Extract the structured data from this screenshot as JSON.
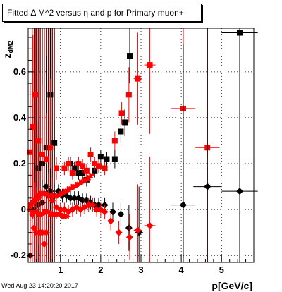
{
  "title": "Fitted Δ M^2 versus η and p for Primary muon+",
  "footer_timestamp": "Wed Aug 23 14:20:20 2017",
  "chart_data": {
    "type": "scatter",
    "title": "Fitted Δ M^2 versus η and p for Primary muon+",
    "xlabel": "p[GeV/c]",
    "ylabel": "z_dM2",
    "xlim": [
      0.2,
      5.8
    ],
    "ylim": [
      -0.23,
      0.79
    ],
    "grid": true,
    "xticks": [
      1,
      2,
      3,
      4,
      5
    ],
    "yticks": [
      -0.2,
      0,
      0.2,
      0.4,
      0.6
    ],
    "colors": {
      "black": "#000000",
      "red": "#ff0000",
      "darkred": "#800000"
    },
    "series": [
      {
        "color": "black",
        "marker": "square",
        "points": [
          {
            "x": 0.45,
            "y": 0.18,
            "ex": 0.03,
            "ey": 0.2
          },
          {
            "x": 0.55,
            "y": 0.2,
            "ex": 0.03,
            "ey": 0.15
          },
          {
            "x": 0.65,
            "y": 0.27,
            "ex": 0.04,
            "ey": 0.4
          },
          {
            "x": 0.75,
            "y": 0.5,
            "ex": 0.04,
            "ey": 0.3
          },
          {
            "x": 0.85,
            "y": 0.29,
            "ex": 0.04,
            "ey": 0.1
          },
          {
            "x": 1.25,
            "y": 0.2,
            "ex": 0.05,
            "ey": 0.03
          },
          {
            "x": 1.35,
            "y": 0.18,
            "ex": 0.05,
            "ey": 0.03
          },
          {
            "x": 1.45,
            "y": 0.16,
            "ex": 0.05,
            "ey": 0.03
          },
          {
            "x": 1.55,
            "y": 0.16,
            "ex": 0.05,
            "ey": 0.03
          },
          {
            "x": 1.65,
            "y": 0.13,
            "ex": 0.05,
            "ey": 0.03
          },
          {
            "x": 1.85,
            "y": 0.17,
            "ex": 0.05,
            "ey": 0.03
          },
          {
            "x": 2.0,
            "y": 0.23,
            "ex": 0.05,
            "ey": 0.03
          },
          {
            "x": 2.15,
            "y": 0.22,
            "ex": 0.05,
            "ey": 0.03
          },
          {
            "x": 2.35,
            "y": 0.22,
            "ex": 0.05,
            "ey": 0.04
          },
          {
            "x": 2.5,
            "y": 0.34,
            "ex": 0.05,
            "ey": 0.05
          },
          {
            "x": 2.6,
            "y": 0.38,
            "ex": 0.05,
            "ey": 0.06
          },
          {
            "x": 2.72,
            "y": 0.67,
            "ex": 0.06,
            "ey": 0.12
          },
          {
            "x": 5.45,
            "y": 0.77,
            "ex": 0.45,
            "ey": 0.9
          }
        ]
      },
      {
        "color": "red",
        "marker": "square",
        "points": [
          {
            "x": 0.25,
            "y": 0.25,
            "ex": 0.03,
            "ey": 0.3
          },
          {
            "x": 0.32,
            "y": 0.36,
            "ex": 0.03,
            "ey": 0.4
          },
          {
            "x": 0.38,
            "y": 0.5,
            "ex": 0.03,
            "ey": 0.5
          },
          {
            "x": 0.45,
            "y": 0.3,
            "ex": 0.03,
            "ey": 0.3
          },
          {
            "x": 0.55,
            "y": 0.24,
            "ex": 0.03,
            "ey": 0.3
          },
          {
            "x": 0.65,
            "y": 0.22,
            "ex": 0.04,
            "ey": 0.2
          },
          {
            "x": 0.75,
            "y": 0.27,
            "ex": 0.04,
            "ey": 0.3
          },
          {
            "x": 0.9,
            "y": 0.18,
            "ex": 0.04,
            "ey": 0.05
          },
          {
            "x": 1.1,
            "y": 0.18,
            "ex": 0.05,
            "ey": 0.03
          },
          {
            "x": 1.2,
            "y": 0.2,
            "ex": 0.05,
            "ey": 0.03
          },
          {
            "x": 1.3,
            "y": 0.16,
            "ex": 0.05,
            "ey": 0.03
          },
          {
            "x": 1.45,
            "y": 0.2,
            "ex": 0.05,
            "ey": 0.03
          },
          {
            "x": 1.55,
            "y": 0.19,
            "ex": 0.05,
            "ey": 0.03
          },
          {
            "x": 1.65,
            "y": 0.17,
            "ex": 0.05,
            "ey": 0.03
          },
          {
            "x": 1.75,
            "y": 0.24,
            "ex": 0.05,
            "ey": 0.03
          },
          {
            "x": 1.85,
            "y": 0.2,
            "ex": 0.05,
            "ey": 0.03
          },
          {
            "x": 1.95,
            "y": 0.19,
            "ex": 0.05,
            "ey": 0.03
          },
          {
            "x": 2.1,
            "y": 0.18,
            "ex": 0.05,
            "ey": 0.03
          },
          {
            "x": 2.35,
            "y": 0.3,
            "ex": 0.05,
            "ey": 0.04
          },
          {
            "x": 2.52,
            "y": 0.42,
            "ex": 0.05,
            "ey": 0.05
          },
          {
            "x": 2.7,
            "y": 0.5,
            "ex": 0.06,
            "ey": 0.12
          },
          {
            "x": 2.92,
            "y": 0.57,
            "ex": 0.1,
            "ey": 0.2
          },
          {
            "x": 3.22,
            "y": 0.63,
            "ex": 0.14,
            "ey": 0.3
          },
          {
            "x": 4.05,
            "y": 0.44,
            "ex": 0.3,
            "ey": 0.7
          },
          {
            "x": 4.65,
            "y": 0.27,
            "ex": 0.3,
            "ey": 0.7
          }
        ]
      },
      {
        "color": "black",
        "marker": "diamond",
        "points": [
          {
            "x": 0.25,
            "y": -0.2,
            "ex": 0.03,
            "ey": 0.3
          },
          {
            "x": 0.35,
            "y": 0.0,
            "ex": 0.03,
            "ey": 0.2
          },
          {
            "x": 0.45,
            "y": 0.02,
            "ex": 0.03,
            "ey": 0.1
          },
          {
            "x": 0.55,
            "y": 0.03,
            "ex": 0.03,
            "ey": 0.1
          },
          {
            "x": 0.65,
            "y": 0.1,
            "ex": 0.04,
            "ey": 0.1
          },
          {
            "x": 0.75,
            "y": 0.08,
            "ex": 0.04,
            "ey": 0.1
          },
          {
            "x": 0.85,
            "y": 0.06,
            "ex": 0.04,
            "ey": 0.05
          },
          {
            "x": 0.95,
            "y": 0.08,
            "ex": 0.04,
            "ey": 0.03
          },
          {
            "x": 1.05,
            "y": 0.06,
            "ex": 0.04,
            "ey": 0.03
          },
          {
            "x": 1.15,
            "y": 0.06,
            "ex": 0.04,
            "ey": 0.03
          },
          {
            "x": 1.25,
            "y": 0.05,
            "ex": 0.05,
            "ey": 0.03
          },
          {
            "x": 1.35,
            "y": 0.05,
            "ex": 0.05,
            "ey": 0.03
          },
          {
            "x": 1.45,
            "y": 0.05,
            "ex": 0.05,
            "ey": 0.03
          },
          {
            "x": 1.55,
            "y": 0.04,
            "ex": 0.05,
            "ey": 0.03
          },
          {
            "x": 1.65,
            "y": 0.04,
            "ex": 0.05,
            "ey": 0.03
          },
          {
            "x": 1.75,
            "y": 0.03,
            "ex": 0.05,
            "ey": 0.03
          },
          {
            "x": 1.85,
            "y": 0.02,
            "ex": 0.05,
            "ey": 0.03
          },
          {
            "x": 1.95,
            "y": 0.02,
            "ex": 0.05,
            "ey": 0.03
          },
          {
            "x": 2.1,
            "y": 0.02,
            "ex": 0.05,
            "ey": 0.03
          },
          {
            "x": 2.3,
            "y": -0.01,
            "ex": 0.05,
            "ey": 0.04
          },
          {
            "x": 2.5,
            "y": -0.02,
            "ex": 0.05,
            "ey": 0.05
          },
          {
            "x": 2.7,
            "y": -0.08,
            "ex": 0.06,
            "ey": 0.1
          },
          {
            "x": 2.95,
            "y": -0.1,
            "ex": 0.1,
            "ey": 0.2
          },
          {
            "x": 4.05,
            "y": 0.02,
            "ex": 0.3,
            "ey": 0.7
          },
          {
            "x": 4.65,
            "y": 0.1,
            "ex": 0.35,
            "ey": 0.7
          },
          {
            "x": 5.45,
            "y": 0.08,
            "ex": 0.45,
            "ey": 0.9
          }
        ]
      },
      {
        "color": "red",
        "marker": "diamond",
        "points": [
          {
            "x": 0.25,
            "y": 0.0,
            "ex": 0.03,
            "ey": 0.25
          },
          {
            "x": 0.3,
            "y": -0.02,
            "ex": 0.03,
            "ey": 0.2
          },
          {
            "x": 0.35,
            "y": -0.08,
            "ex": 0.03,
            "ey": 0.2
          },
          {
            "x": 0.4,
            "y": -0.1,
            "ex": 0.03,
            "ey": 0.2
          },
          {
            "x": 0.45,
            "y": 0.05,
            "ex": 0.03,
            "ey": 0.2
          },
          {
            "x": 0.5,
            "y": -0.1,
            "ex": 0.03,
            "ey": 0.2
          },
          {
            "x": 0.55,
            "y": -0.1,
            "ex": 0.03,
            "ey": 0.2
          },
          {
            "x": 0.6,
            "y": -0.15,
            "ex": 0.03,
            "ey": 0.2
          },
          {
            "x": 0.65,
            "y": -0.1,
            "ex": 0.04,
            "ey": 0.15
          },
          {
            "x": 0.7,
            "y": 0.06,
            "ex": 0.04,
            "ey": 0.1
          },
          {
            "x": 0.8,
            "y": 0.04,
            "ex": 0.04,
            "ey": 0.1
          },
          {
            "x": 0.9,
            "y": 0.01,
            "ex": 0.04,
            "ey": 0.05
          },
          {
            "x": 1.0,
            "y": 0.0,
            "ex": 0.04,
            "ey": 0.03
          },
          {
            "x": 1.1,
            "y": 0.0,
            "ex": 0.04,
            "ey": 0.03
          },
          {
            "x": 1.2,
            "y": -0.01,
            "ex": 0.04,
            "ey": 0.03
          },
          {
            "x": 1.3,
            "y": 0.0,
            "ex": 0.05,
            "ey": 0.03
          },
          {
            "x": 1.4,
            "y": 0.01,
            "ex": 0.05,
            "ey": 0.03
          },
          {
            "x": 1.5,
            "y": 0.0,
            "ex": 0.05,
            "ey": 0.03
          },
          {
            "x": 1.6,
            "y": 0.01,
            "ex": 0.05,
            "ey": 0.03
          },
          {
            "x": 1.7,
            "y": 0.02,
            "ex": 0.05,
            "ey": 0.03
          },
          {
            "x": 1.8,
            "y": 0.02,
            "ex": 0.05,
            "ey": 0.03
          },
          {
            "x": 1.9,
            "y": 0.0,
            "ex": 0.05,
            "ey": 0.03
          },
          {
            "x": 2.0,
            "y": 0.0,
            "ex": 0.05,
            "ey": 0.03
          },
          {
            "x": 2.1,
            "y": -0.01,
            "ex": 0.05,
            "ey": 0.03
          },
          {
            "x": 2.25,
            "y": -0.05,
            "ex": 0.05,
            "ey": 0.04
          },
          {
            "x": 2.45,
            "y": -0.1,
            "ex": 0.05,
            "ey": 0.05
          },
          {
            "x": 2.72,
            "y": -0.12,
            "ex": 0.06,
            "ey": 0.1
          },
          {
            "x": 2.92,
            "y": -0.09,
            "ex": 0.1,
            "ey": 0.2
          },
          {
            "x": 3.22,
            "y": -0.07,
            "ex": 0.14,
            "ey": 0.3
          }
        ]
      },
      {
        "color": "red",
        "marker": "triangle-right",
        "points": [
          {
            "x": 0.28,
            "y": 0.02
          },
          {
            "x": 0.33,
            "y": 0.03
          },
          {
            "x": 0.38,
            "y": 0.04
          },
          {
            "x": 0.43,
            "y": 0.05
          },
          {
            "x": 0.48,
            "y": 0.06
          },
          {
            "x": 0.53,
            "y": 0.07
          },
          {
            "x": 0.58,
            "y": 0.07
          },
          {
            "x": 0.63,
            "y": 0.07
          },
          {
            "x": 0.68,
            "y": 0.07
          },
          {
            "x": 0.73,
            "y": 0.06
          },
          {
            "x": 0.78,
            "y": 0.06
          },
          {
            "x": 0.83,
            "y": 0.06
          },
          {
            "x": 0.88,
            "y": 0.06
          },
          {
            "x": 0.93,
            "y": 0.06
          },
          {
            "x": 0.98,
            "y": 0.06
          },
          {
            "x": 1.03,
            "y": 0.07
          },
          {
            "x": 1.08,
            "y": 0.07
          },
          {
            "x": 1.13,
            "y": 0.08
          },
          {
            "x": 1.18,
            "y": 0.08
          },
          {
            "x": 1.23,
            "y": 0.09
          },
          {
            "x": 1.28,
            "y": 0.09
          },
          {
            "x": 1.33,
            "y": 0.1
          },
          {
            "x": 1.38,
            "y": 0.1
          },
          {
            "x": 1.43,
            "y": 0.11
          },
          {
            "x": 1.48,
            "y": 0.11
          },
          {
            "x": 1.53,
            "y": 0.12
          },
          {
            "x": 1.58,
            "y": 0.12
          },
          {
            "x": 1.63,
            "y": 0.13
          },
          {
            "x": 1.68,
            "y": 0.13
          },
          {
            "x": 1.73,
            "y": 0.14
          },
          {
            "x": 1.78,
            "y": 0.15
          },
          {
            "x": 0.28,
            "y": 0.0
          },
          {
            "x": 0.33,
            "y": -0.01
          },
          {
            "x": 0.38,
            "y": -0.01
          },
          {
            "x": 0.43,
            "y": -0.01
          },
          {
            "x": 0.48,
            "y": -0.02
          },
          {
            "x": 0.53,
            "y": -0.02
          },
          {
            "x": 0.58,
            "y": -0.02
          },
          {
            "x": 0.63,
            "y": -0.01
          },
          {
            "x": 0.68,
            "y": -0.01
          },
          {
            "x": 0.73,
            "y": -0.01
          },
          {
            "x": 0.78,
            "y": -0.02
          },
          {
            "x": 0.83,
            "y": -0.02
          },
          {
            "x": 0.88,
            "y": -0.02
          },
          {
            "x": 0.93,
            "y": -0.02
          },
          {
            "x": 0.98,
            "y": -0.02
          },
          {
            "x": 1.03,
            "y": -0.02
          },
          {
            "x": 1.08,
            "y": -0.03
          },
          {
            "x": 1.13,
            "y": -0.03
          },
          {
            "x": 1.18,
            "y": -0.03
          }
        ]
      },
      {
        "color": "darkred",
        "marker": "vertical-band",
        "points": [
          {
            "x": 0.3,
            "ylo": -0.23,
            "yhi": 0.79
          },
          {
            "x": 0.35,
            "ylo": -0.23,
            "yhi": 0.79
          },
          {
            "x": 0.4,
            "ylo": -0.23,
            "yhi": 0.79
          },
          {
            "x": 0.45,
            "ylo": -0.23,
            "yhi": 0.79
          },
          {
            "x": 0.5,
            "ylo": -0.23,
            "yhi": 0.79
          },
          {
            "x": 0.55,
            "ylo": -0.23,
            "yhi": 0.79
          },
          {
            "x": 0.6,
            "ylo": -0.23,
            "yhi": 0.79
          },
          {
            "x": 0.65,
            "ylo": -0.23,
            "yhi": 0.79
          },
          {
            "x": 0.7,
            "ylo": -0.23,
            "yhi": 0.79
          },
          {
            "x": 0.75,
            "ylo": -0.23,
            "yhi": 0.79
          },
          {
            "x": 0.8,
            "ylo": -0.23,
            "yhi": 0.79
          },
          {
            "x": 0.85,
            "ylo": -0.23,
            "yhi": 0.79
          }
        ]
      }
    ]
  }
}
